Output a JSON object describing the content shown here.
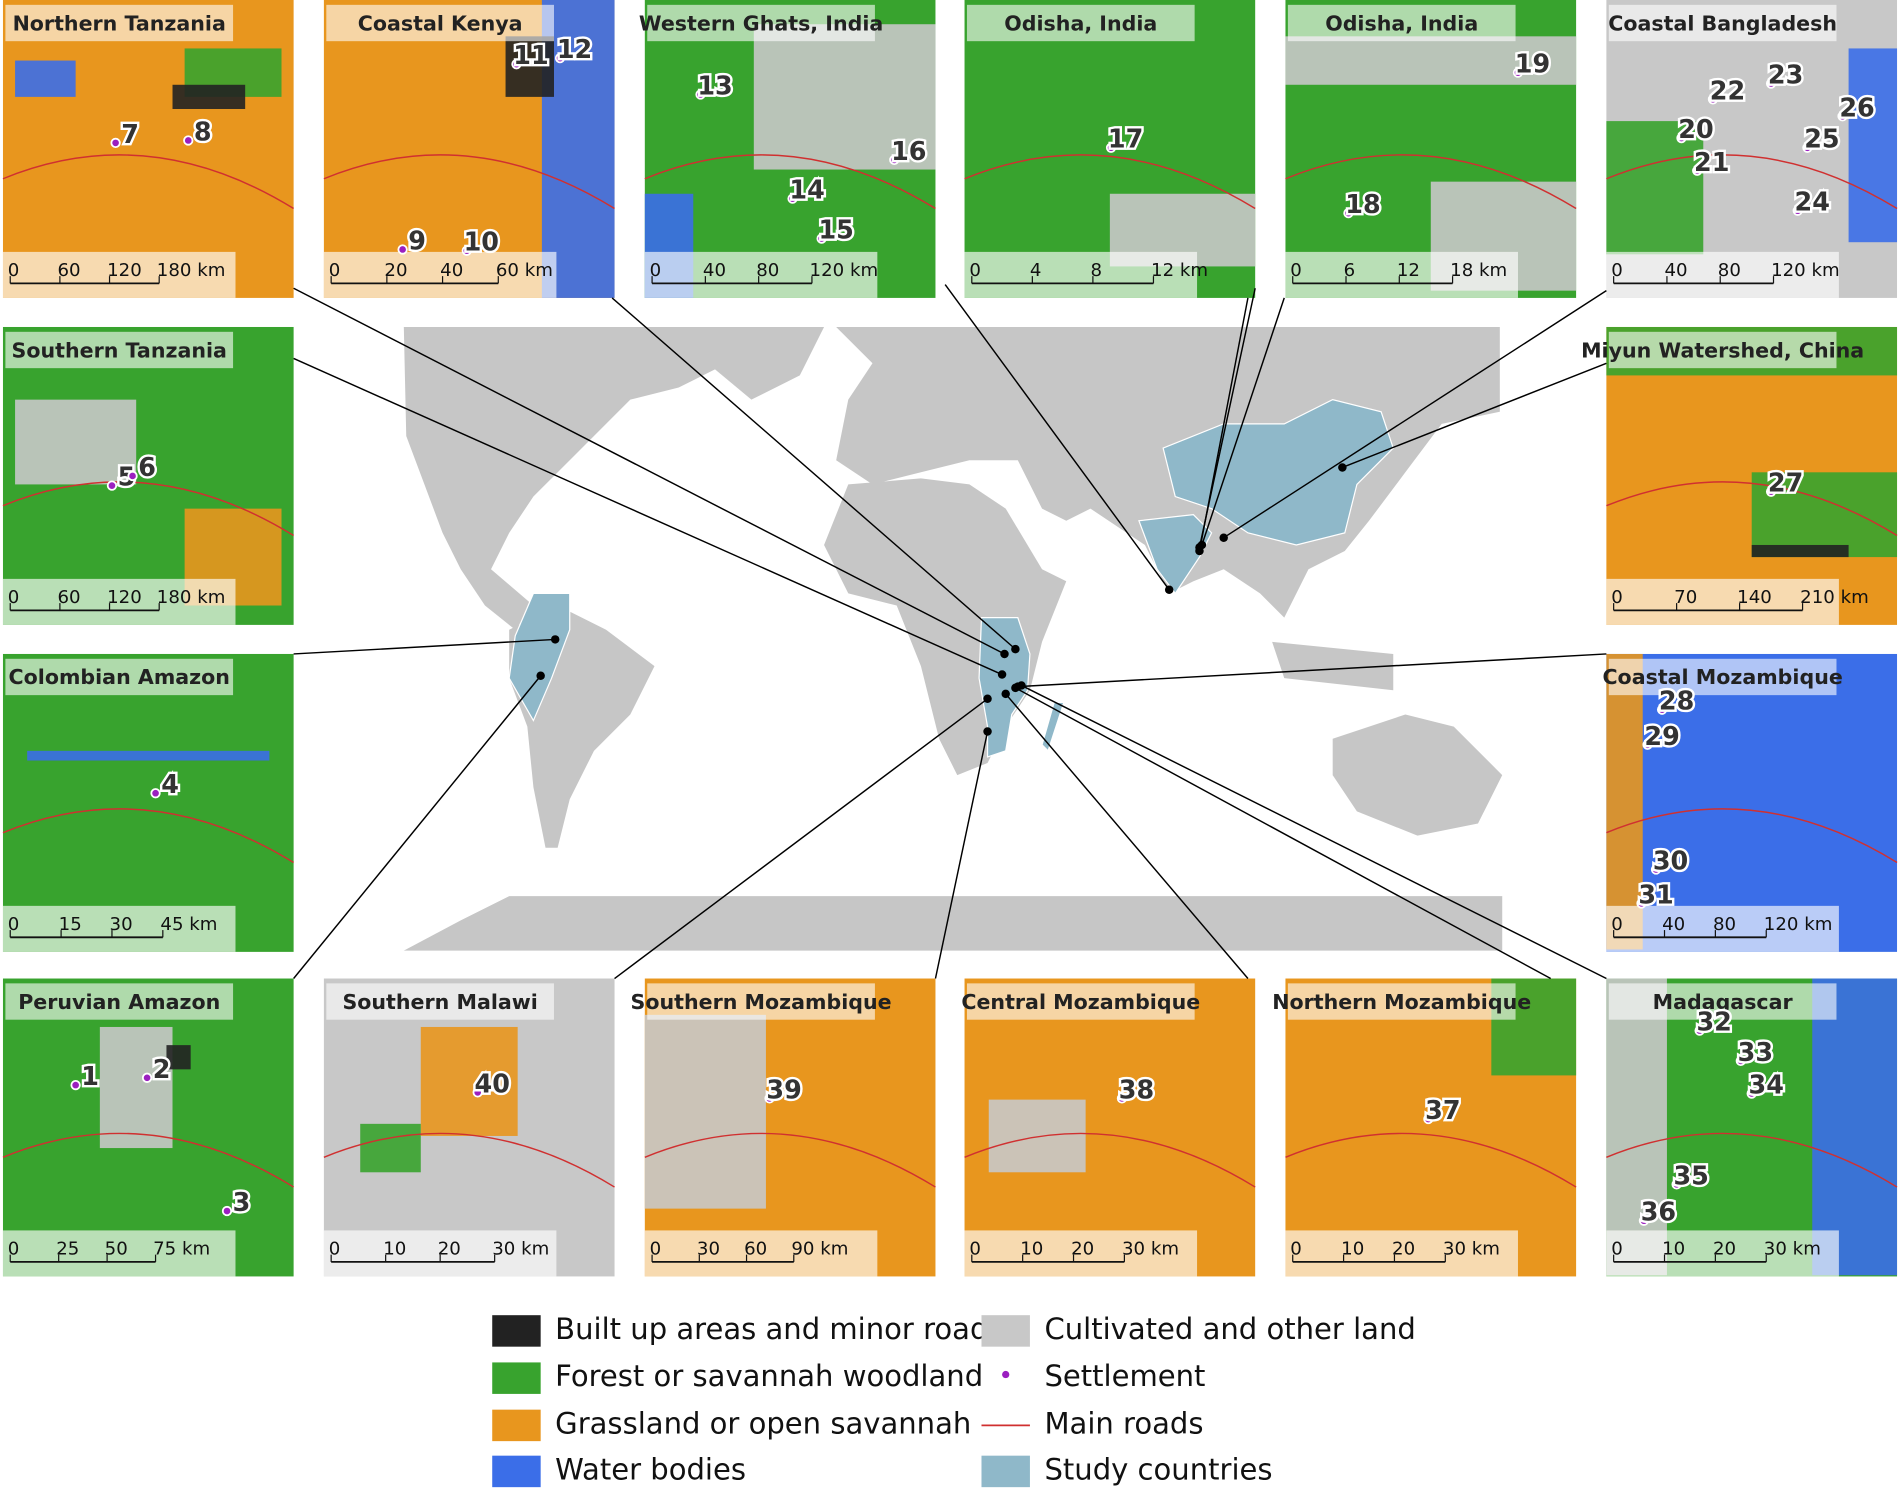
{
  "panels": [
    {
      "title": "Northern Tanzania",
      "scale": [
        "0",
        "60",
        "120",
        "180 km"
      ],
      "sites": [
        "7",
        "8"
      ]
    },
    {
      "title": "Coastal Kenya",
      "scale": [
        "0",
        "20",
        "40",
        "60 km"
      ],
      "sites": [
        "9",
        "10",
        "11",
        "12"
      ]
    },
    {
      "title": "Western Ghats, India",
      "scale": [
        "0",
        "40",
        "80",
        "120 km"
      ],
      "sites": [
        "13",
        "14",
        "15",
        "16"
      ]
    },
    {
      "title": "Odisha, India",
      "scale": [
        "0",
        "4",
        "8",
        "12 km"
      ],
      "sites": [
        "17"
      ]
    },
    {
      "title": "Odisha, India",
      "scale": [
        "0",
        "6",
        "12",
        "18 km"
      ],
      "sites": [
        "18",
        "19"
      ]
    },
    {
      "title": "Coastal Bangladesh",
      "scale": [
        "0",
        "40",
        "80",
        "120 km"
      ],
      "sites": [
        "20",
        "21",
        "22",
        "23",
        "24",
        "25",
        "26"
      ]
    },
    {
      "title": "Southern Tanzania",
      "scale": [
        "0",
        "60",
        "120",
        "180 km"
      ],
      "sites": [
        "5",
        "6"
      ]
    },
    {
      "title": "Miyun Watershed, China",
      "scale": [
        "0",
        "70",
        "140",
        "210 km"
      ],
      "sites": [
        "27"
      ]
    },
    {
      "title": "Colombian Amazon",
      "scale": [
        "0",
        "15",
        "30",
        "45 km"
      ],
      "sites": [
        "4"
      ]
    },
    {
      "title": "Coastal Mozambique",
      "scale": [
        "0",
        "40",
        "80",
        "120 km"
      ],
      "sites": [
        "28",
        "29",
        "30",
        "31"
      ]
    },
    {
      "title": "Peruvian Amazon",
      "scale": [
        "0",
        "25",
        "50",
        "75 km"
      ],
      "sites": [
        "1",
        "2",
        "3"
      ]
    },
    {
      "title": "Southern Malawi",
      "scale": [
        "0",
        "10",
        "20",
        "30 km"
      ],
      "sites": [
        "40"
      ]
    },
    {
      "title": "Southern Mozambique",
      "scale": [
        "0",
        "30",
        "60",
        "90 km"
      ],
      "sites": [
        "39"
      ]
    },
    {
      "title": "Central Mozambique",
      "scale": [
        "0",
        "10",
        "20",
        "30 km"
      ],
      "sites": [
        "38"
      ]
    },
    {
      "title": "Northern Mozambique",
      "scale": [
        "0",
        "10",
        "20",
        "30 km"
      ],
      "sites": [
        "37"
      ]
    },
    {
      "title": "Madagascar",
      "scale": [
        "0",
        "10",
        "20",
        "30 km"
      ],
      "sites": [
        "32",
        "33",
        "34",
        "35",
        "36"
      ]
    }
  ],
  "legend": [
    "Built up areas and minor roads",
    "Forest or savannah woodland",
    "Grassland or open savannah",
    "Water bodies",
    "Cultivated and other land",
    "Settlement",
    "Main roads",
    "Study countries"
  ]
}
